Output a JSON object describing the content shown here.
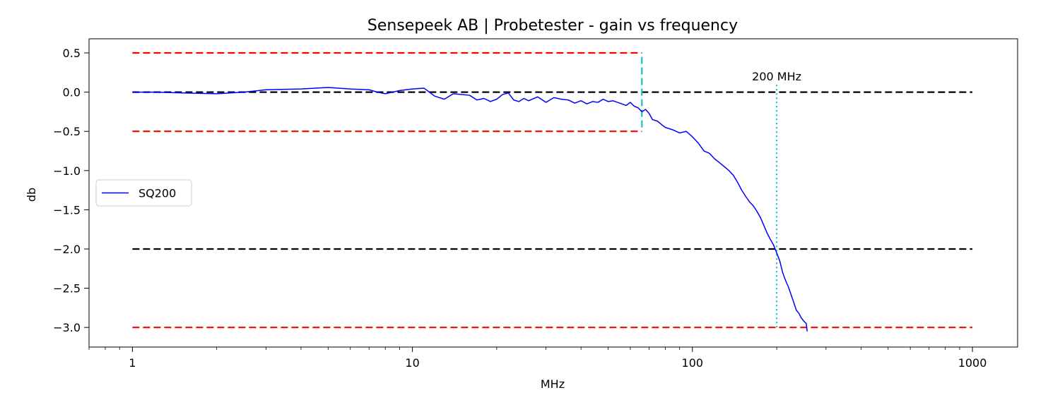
{
  "chart_data": {
    "type": "line",
    "title": "Sensepeek AB | Probetester - gain vs frequency",
    "xlabel": "MHz",
    "ylabel": "db",
    "xscale": "log",
    "xlim": [
      0.7,
      1450
    ],
    "ylim": [
      -3.25,
      0.68
    ],
    "xticks": [
      1,
      10,
      100,
      1000
    ],
    "xtick_labels": [
      "1",
      "10",
      "100",
      "1000"
    ],
    "yticks": [
      0.5,
      0.0,
      -0.5,
      -1.0,
      -1.5,
      -2.0,
      -2.5,
      -3.0
    ],
    "ytick_labels": [
      "0.5",
      "0.0",
      "−0.5",
      "−1.0",
      "−1.5",
      "−2.0",
      "−2.5",
      "−3.0"
    ],
    "grid": false,
    "legend": {
      "location": "center-left"
    },
    "reference_lines": [
      {
        "kind": "horizontal",
        "y": 0.5,
        "x_range": [
          1,
          66
        ],
        "color": "#ff0000",
        "style": "dashed"
      },
      {
        "kind": "horizontal",
        "y": -0.5,
        "x_range": [
          1,
          66
        ],
        "color": "#ff0000",
        "style": "dashed"
      },
      {
        "kind": "horizontal",
        "y": 0.0,
        "x_range": [
          1,
          1000
        ],
        "color": "#000000",
        "style": "dashed"
      },
      {
        "kind": "horizontal",
        "y": -2.0,
        "x_range": [
          1,
          1000
        ],
        "color": "#000000",
        "style": "dashed"
      },
      {
        "kind": "horizontal",
        "y": -3.0,
        "x_range": [
          1,
          1000
        ],
        "color": "#ff0000",
        "style": "dashed"
      },
      {
        "kind": "vertical",
        "x": 66,
        "y_range": [
          -0.45,
          0.5
        ],
        "color": "#17becf",
        "style": "dashed"
      },
      {
        "kind": "vertical",
        "x": 200,
        "y_range": [
          -3.0,
          0.1
        ],
        "color": "#17becf",
        "style": "dotted"
      }
    ],
    "annotations": [
      {
        "text": "200 MHz",
        "x": 200,
        "y": 0.15
      }
    ],
    "series": [
      {
        "name": "SQ200",
        "color": "#0000ff",
        "x": [
          1,
          1.2,
          1.5,
          2,
          2.5,
          3,
          4,
          5,
          6,
          7,
          7.5,
          8,
          9,
          10,
          11,
          11.5,
          12,
          13,
          14,
          15,
          16,
          17,
          18,
          19,
          20,
          21,
          22,
          23,
          24,
          25,
          26,
          28,
          30,
          32,
          34,
          36,
          38,
          40,
          42,
          44,
          46,
          48,
          50,
          52,
          55,
          58,
          60,
          62,
          64,
          66,
          68,
          70,
          72,
          75,
          78,
          80,
          85,
          90,
          95,
          100,
          105,
          110,
          115,
          120,
          125,
          130,
          135,
          140,
          145,
          150,
          155,
          160,
          165,
          170,
          175,
          180,
          185,
          190,
          195,
          200,
          205,
          210,
          215,
          220,
          225,
          230,
          235,
          240,
          245,
          250,
          255,
          257
        ],
        "y": [
          0.0,
          0.0,
          -0.01,
          -0.02,
          0.0,
          0.03,
          0.04,
          0.06,
          0.04,
          0.03,
          0.0,
          -0.02,
          0.02,
          0.04,
          0.05,
          0.0,
          -0.05,
          -0.09,
          -0.02,
          -0.03,
          -0.04,
          -0.1,
          -0.08,
          -0.12,
          -0.09,
          -0.03,
          -0.01,
          -0.1,
          -0.12,
          -0.08,
          -0.11,
          -0.06,
          -0.13,
          -0.07,
          -0.09,
          -0.1,
          -0.14,
          -0.11,
          -0.15,
          -0.12,
          -0.13,
          -0.09,
          -0.12,
          -0.11,
          -0.14,
          -0.17,
          -0.13,
          -0.18,
          -0.2,
          -0.25,
          -0.22,
          -0.27,
          -0.35,
          -0.37,
          -0.42,
          -0.45,
          -0.48,
          -0.52,
          -0.5,
          -0.57,
          -0.65,
          -0.75,
          -0.78,
          -0.85,
          -0.9,
          -0.95,
          -1.0,
          -1.06,
          -1.15,
          -1.25,
          -1.33,
          -1.4,
          -1.45,
          -1.52,
          -1.6,
          -1.7,
          -1.8,
          -1.88,
          -1.95,
          -2.05,
          -2.15,
          -2.3,
          -2.4,
          -2.48,
          -2.58,
          -2.68,
          -2.78,
          -2.82,
          -2.88,
          -2.92,
          -2.95,
          -3.05
        ]
      }
    ]
  }
}
